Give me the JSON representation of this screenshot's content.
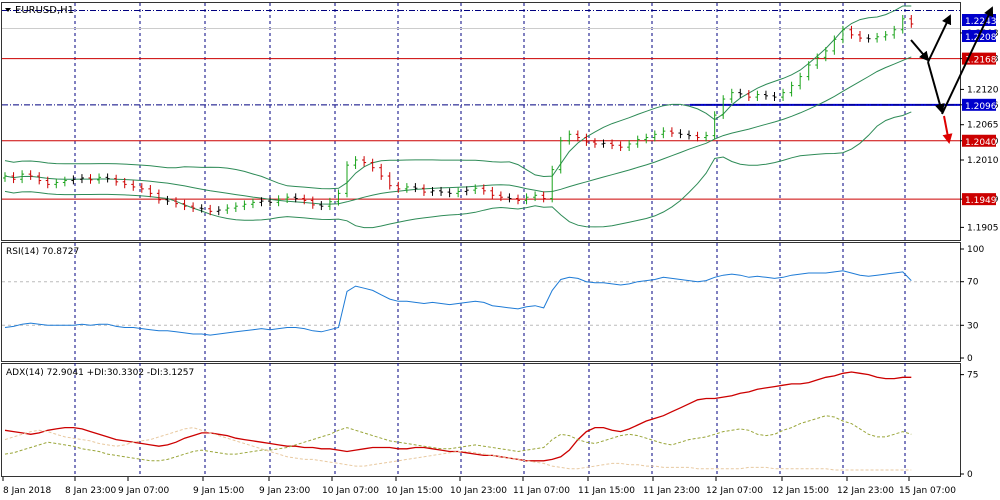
{
  "chart_data": [
    {
      "type": "candlestick",
      "title": "EURUSD,H1",
      "ylim": [
        1.189,
        1.225
      ],
      "y_ticks": [
        "1.2208",
        "1.2168",
        "1.2120",
        "1.2096",
        "1.2065",
        "1.2040",
        "1.2010",
        "1.1949",
        "1.1905"
      ],
      "price_badges": [
        {
          "value": "1.2243",
          "color": "#0000cc",
          "bg": "#0000cc",
          "text_color": "#ffffff"
        },
        {
          "value": "1.2208",
          "color": "#0000cc",
          "bg": "#0000cc",
          "text_color": "#ffffff"
        },
        {
          "value": "1.2168",
          "color": "#cc0000",
          "bg": "#cc0000",
          "text_color": "#ffffff"
        },
        {
          "value": "1.2096",
          "color": "#0000cc",
          "bg": "#0000cc",
          "text_color": "#ffffff"
        },
        {
          "value": "1.2040",
          "color": "#cc0000",
          "bg": "#cc0000",
          "text_color": "#ffffff"
        },
        {
          "value": "1.1949",
          "color": "#cc0000",
          "bg": "#cc0000",
          "text_color": "#ffffff"
        }
      ],
      "horizontal_lines": [
        {
          "value": 1.2168,
          "color": "#cc0000",
          "style": "solid"
        },
        {
          "value": 1.2096,
          "color": "#0000cc",
          "style": "solid"
        },
        {
          "value": 1.204,
          "color": "#cc0000",
          "style": "solid"
        },
        {
          "value": 1.1949,
          "color": "#cc0000",
          "style": "solid"
        },
        {
          "value": 1.2243,
          "color": "#000080",
          "style": "dashdot"
        },
        {
          "value": 1.2096,
          "color": "#000080",
          "style": "dashdot"
        }
      ],
      "closes": [
        1.1985,
        1.198,
        1.1988,
        1.1985,
        1.1978,
        1.1972,
        1.1975,
        1.1978,
        1.198,
        1.1982,
        1.1979,
        1.1983,
        1.1981,
        1.1976,
        1.1972,
        1.1968,
        1.1965,
        1.1958,
        1.1948,
        1.1946,
        1.1942,
        1.1938,
        1.1935,
        1.1934,
        1.193,
        1.1932,
        1.1935,
        1.1938,
        1.1941,
        1.1944,
        1.1946,
        1.1944,
        1.1949,
        1.1952,
        1.195,
        1.1947,
        1.194,
        1.1938,
        1.1945,
        1.1958,
        1.2002,
        1.201,
        1.2006,
        1.1998,
        1.1985,
        1.197,
        1.1965,
        1.1968,
        1.1966,
        1.196,
        1.1962,
        1.196,
        1.1958,
        1.1961,
        1.1963,
        1.1966,
        1.1962,
        1.1955,
        1.1952,
        1.195,
        1.1947,
        1.1952,
        1.1955,
        1.195,
        1.1995,
        1.204,
        1.205,
        1.2045,
        1.2038,
        1.2035,
        1.2036,
        1.2033,
        1.203,
        1.2035,
        1.2042,
        1.2045,
        1.205,
        1.2055,
        1.2052,
        1.205,
        1.2048,
        1.2045,
        1.2048,
        1.208,
        1.2105,
        1.2115,
        1.2113,
        1.2108,
        1.2112,
        1.211,
        1.2108,
        1.2115,
        1.2126,
        1.214,
        1.2158,
        1.217,
        1.218,
        1.2198,
        1.2213,
        1.2205,
        1.22,
        1.2199,
        1.2202,
        1.2205,
        1.2213,
        1.223,
        1.2222
      ],
      "overlays": [
        "bollinger-upper",
        "bollinger-middle",
        "bollinger-lower"
      ]
    },
    {
      "type": "line",
      "title": "RSI(14) 70.8727",
      "ylim": [
        0,
        100
      ],
      "y_ticks": [
        "100",
        "70",
        "30",
        "0"
      ],
      "levels": [
        70,
        30
      ],
      "series": [
        {
          "name": "",
          "color": "#1e7bd6",
          "values": [
            28,
            29,
            31,
            32,
            31,
            30,
            30,
            30,
            30,
            31,
            30,
            31,
            31,
            29,
            28,
            28,
            27,
            26,
            25,
            25,
            24,
            23,
            22,
            22,
            21,
            22,
            23,
            24,
            25,
            26,
            27,
            26,
            27,
            28,
            28,
            27,
            25,
            24,
            26,
            28,
            61,
            66,
            64,
            62,
            58,
            54,
            52,
            52,
            51,
            50,
            51,
            50,
            49,
            50,
            51,
            52,
            51,
            48,
            47,
            46,
            45,
            47,
            48,
            46,
            62,
            72,
            74,
            73,
            70,
            69,
            69,
            68,
            67,
            68,
            70,
            71,
            72,
            74,
            73,
            72,
            71,
            70,
            71,
            74,
            76,
            77,
            76,
            74,
            75,
            74,
            73,
            74,
            76,
            77,
            78,
            78,
            78,
            79,
            80,
            78,
            76,
            75,
            76,
            77,
            78,
            79,
            71
          ]
        }
      ]
    },
    {
      "type": "line",
      "title": "ADX(14) 72.9041 +DI:30.3302 -DI:3.1257",
      "ylim": [
        0,
        80
      ],
      "y_ticks": [
        "75",
        "0"
      ],
      "series": [
        {
          "name": "",
          "color": "#cc0000",
          "style": "solid",
          "values": [
            33,
            32,
            31,
            30,
            31,
            33,
            34,
            35,
            35,
            34,
            32,
            30,
            28,
            26,
            25,
            24,
            23,
            22,
            21,
            22,
            24,
            27,
            29,
            31,
            31,
            30,
            29,
            27,
            26,
            25,
            24,
            23,
            22,
            21,
            21,
            20,
            20,
            19,
            19,
            18,
            17,
            18,
            19,
            20,
            20,
            20,
            19,
            19,
            20,
            20,
            19,
            18,
            17,
            17,
            16,
            15,
            14,
            14,
            13,
            12,
            11,
            10,
            10,
            10,
            11,
            13,
            18,
            26,
            32,
            35,
            35,
            33,
            32,
            34,
            37,
            40,
            42,
            44,
            47,
            50,
            53,
            56,
            57,
            57,
            58,
            59,
            61,
            62,
            64,
            65,
            66,
            67,
            68,
            68,
            69,
            71,
            73,
            74,
            76,
            77,
            76,
            75,
            73,
            72,
            72,
            73,
            73
          ]
        },
        {
          "name": "",
          "color": "#9aa63a",
          "style": "dashed",
          "values": [
            15,
            16,
            18,
            20,
            22,
            24,
            23,
            22,
            21,
            19,
            18,
            17,
            15,
            14,
            13,
            12,
            11,
            10,
            10,
            11,
            13,
            15,
            17,
            18,
            17,
            16,
            15,
            15,
            16,
            17,
            18,
            18,
            19,
            20,
            22,
            24,
            26,
            28,
            30,
            33,
            35,
            33,
            31,
            29,
            27,
            25,
            24,
            23,
            22,
            21,
            20,
            19,
            19,
            20,
            21,
            22,
            21,
            20,
            19,
            18,
            17,
            18,
            19,
            20,
            26,
            30,
            29,
            26,
            24,
            23,
            25,
            27,
            29,
            30,
            29,
            27,
            25,
            23,
            22,
            24,
            26,
            27,
            28,
            30,
            32,
            33,
            34,
            33,
            30,
            29,
            30,
            33,
            35,
            38,
            40,
            42,
            44,
            43,
            40,
            38,
            34,
            30,
            28,
            28,
            30,
            32,
            30
          ]
        },
        {
          "name": "",
          "color": "#e8c9a0",
          "style": "dashed",
          "values": [
            26,
            28,
            30,
            32,
            33,
            32,
            30,
            28,
            27,
            26,
            25,
            23,
            22,
            21,
            22,
            24,
            25,
            26,
            28,
            30,
            32,
            34,
            35,
            33,
            31,
            29,
            27,
            25,
            23,
            21,
            19,
            17,
            15,
            13,
            12,
            11,
            11,
            10,
            9,
            8,
            7,
            6,
            6,
            7,
            8,
            9,
            10,
            11,
            12,
            13,
            14,
            15,
            16,
            17,
            17,
            16,
            15,
            14,
            13,
            12,
            11,
            10,
            9,
            8,
            6,
            5,
            4,
            4,
            5,
            6,
            7,
            8,
            8,
            7,
            7,
            6,
            6,
            5,
            5,
            5,
            5,
            4,
            4,
            4,
            4,
            4,
            4,
            5,
            5,
            5,
            4,
            4,
            4,
            4,
            4,
            4,
            4,
            3,
            3,
            3,
            3,
            3,
            3,
            3,
            3,
            3,
            3
          ]
        }
      ]
    }
  ],
  "x_labels": [
    "8 Jan 2018",
    "8 Jan 23:00",
    "9 Jan 07:00",
    "9 Jan 15:00",
    "9 Jan 23:00",
    "10 Jan 07:00",
    "10 Jan 15:00",
    "10 Jan 23:00",
    "11 Jan 07:00",
    "11 Jan 15:00",
    "11 Jan 23:00",
    "12 Jan 07:00",
    "12 Jan 15:00",
    "12 Jan 23:00",
    "15 Jan 07:00"
  ],
  "colors": {
    "bull": "#1aa31a",
    "bear": "#cc0000",
    "doji": "#000000",
    "bollinger": "#2e8b57",
    "arrow_black": "#000000",
    "arrow_red": "#dd0000"
  }
}
